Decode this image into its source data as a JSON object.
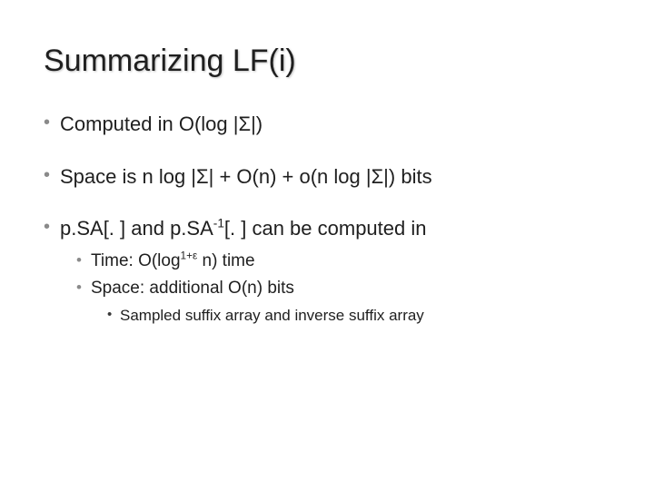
{
  "slide": {
    "title": "Summarizing LF(i)",
    "title_fontsize": 34,
    "title_color": "#1f1f1f",
    "background_color": "#ffffff",
    "bullets_lvl1": [
      {
        "text": "Computed in O(log |Σ|)"
      },
      {
        "text": "Space is n log |Σ| + O(n) + o(n log |Σ|) bits"
      },
      {
        "prefix": "p.SA[. ] and p.SA",
        "sup": "-1",
        "suffix": "[. ] can be computed in",
        "children": [
          {
            "prefix": "Time: O(log",
            "sup": "1+ε",
            "suffix_after_sup": " ",
            "tail": "n) time"
          },
          {
            "text": "Space: additional O(n) bits",
            "children": [
              {
                "text": "Sampled suffix array and inverse suffix array"
              }
            ]
          }
        ]
      }
    ],
    "bullet_color_lvl1": "#8a8a8a",
    "bullet_color_lvl2": "#8a8a8a",
    "bullet_color_lvl3": "#3a3a3a",
    "font_family": "Arial",
    "lvl1_fontsize": 22,
    "lvl2_fontsize": 19,
    "lvl3_fontsize": 17
  }
}
